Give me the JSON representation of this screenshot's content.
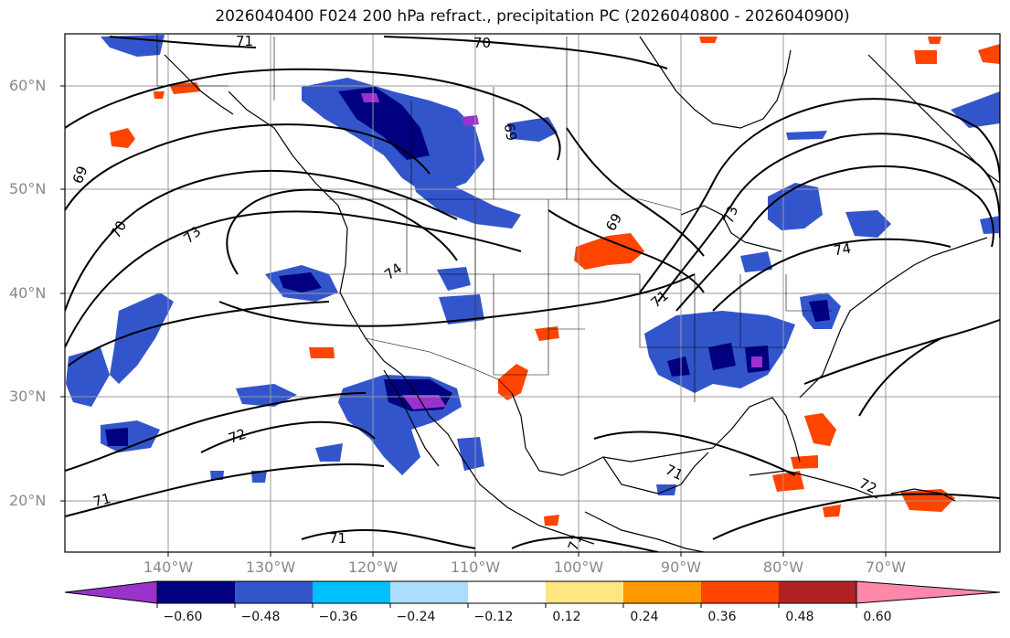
{
  "title": "2026040400 F024 200 hPa refract., precipitation PC (2026040800 - 2026040900)",
  "latitude_labels": [
    "60°N",
    "50°N",
    "40°N",
    "30°N",
    "20°N"
  ],
  "longitude_labels": [
    "140°W",
    "130°W",
    "120°W",
    "110°W",
    "100°W",
    "90°W",
    "80°W",
    "70°W"
  ],
  "contour_labels": [
    "71",
    "70",
    "69",
    "69",
    "70",
    "73",
    "74",
    "72",
    "71",
    "71",
    "71",
    "73",
    "74",
    "72",
    "71",
    "69",
    "71"
  ],
  "colorbar": {
    "tick_labels": [
      "−0.60",
      "−0.48",
      "−0.36",
      "−0.24",
      "−0.12",
      "0.12",
      "0.24",
      "0.36",
      "0.48",
      "0.60"
    ],
    "colors": [
      "#9933cc",
      "#000080",
      "#3355cc",
      "#00bfff",
      "#aaddff",
      "#ffffff",
      "#ffe680",
      "#ff9900",
      "#ff4400",
      "#b22222",
      "#ff88aa"
    ]
  },
  "colors": {
    "contour": "#000000",
    "grid": "#999999",
    "frame": "#000000"
  }
}
